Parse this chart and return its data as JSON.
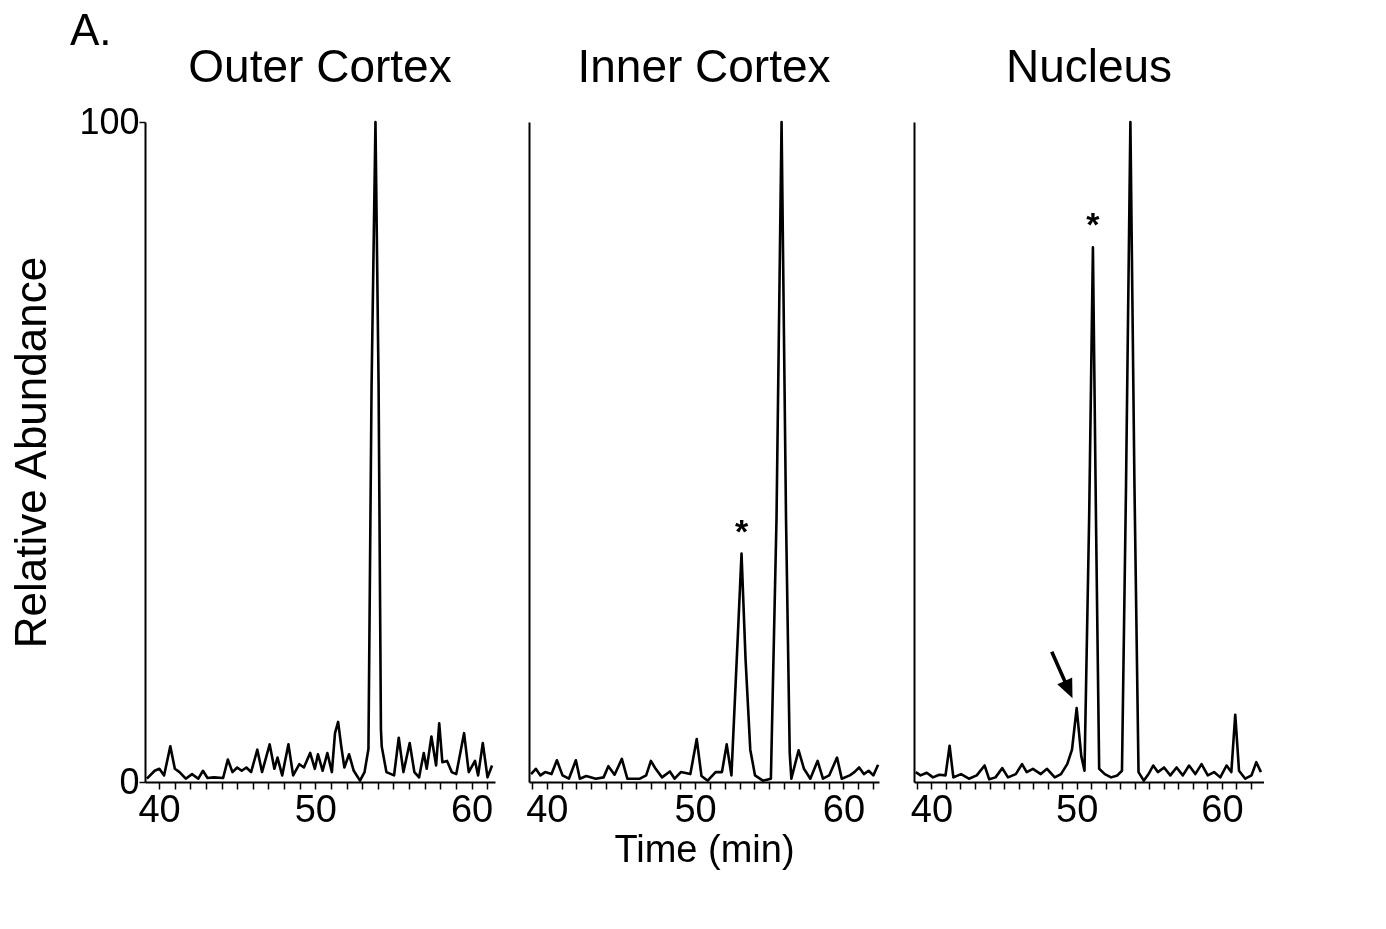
{
  "chart_data": [
    {
      "type": "line",
      "title": "Outer Cortex",
      "ylabel": "Relative Abundance",
      "annotations": [
        "A."
      ],
      "line_style": "solid",
      "grid": false,
      "xlim": [
        39.1,
        61.5
      ],
      "ylim": [
        0,
        100
      ],
      "yticks": [
        0,
        100
      ],
      "xticks": [
        40,
        {
          "value": 41,
          "label": null
        },
        {
          "value": 42,
          "label": null
        },
        {
          "value": 43,
          "label": null
        },
        {
          "value": 44,
          "label": null
        },
        {
          "value": 45,
          "label": null
        },
        {
          "value": 46,
          "label": null
        },
        {
          "value": 47,
          "label": null
        },
        {
          "value": 48,
          "label": null
        },
        {
          "value": 49,
          "label": null
        },
        50,
        {
          "value": 51,
          "label": null
        },
        {
          "value": 52,
          "label": null
        },
        {
          "value": 53,
          "label": null
        },
        {
          "value": 54,
          "label": null
        },
        {
          "value": 55,
          "label": null
        },
        {
          "value": 56,
          "label": null
        },
        {
          "value": 57,
          "label": null
        },
        {
          "value": 58,
          "label": null
        },
        {
          "value": 59,
          "label": null
        },
        60,
        {
          "value": 61,
          "label": null
        }
      ],
      "series": [
        {
          "color": "#000000",
          "x": [
            39.22,
            39.72,
            40.02,
            40.32,
            40.72,
            41.01,
            41.31,
            41.71,
            42.11,
            42.51,
            42.81,
            43.1,
            43.5,
            44.1,
            44.4,
            44.7,
            45.0,
            45.29,
            45.59,
            45.89,
            46.29,
            46.59,
            47.08,
            47.38,
            47.58,
            47.88,
            48.28,
            48.58,
            48.98,
            49.27,
            49.67,
            49.97,
            50.17,
            50.47,
            50.77,
            51.06,
            51.26,
            51.46,
            51.66,
            51.86,
            52.16,
            52.46,
            52.86,
            53.15,
            53.4,
            53.6,
            53.85,
            54.05,
            54.2,
            54.25,
            54.55,
            55.04,
            55.34,
            55.64,
            56.04,
            56.34,
            56.64,
            56.94,
            57.13,
            57.43,
            57.73,
            57.93,
            58.13,
            58.43,
            58.73,
            59.02,
            59.52,
            59.82,
            60.22,
            60.42,
            60.72,
            61.02,
            61.31
          ],
          "values": [
            0.5,
            1.7,
            2.0,
            1.0,
            5.4,
            2.0,
            1.5,
            0.5,
            1.2,
            0.5,
            1.7,
            0.6,
            0.7,
            0.6,
            3.4,
            1.5,
            2.2,
            1.7,
            2.2,
            1.5,
            4.9,
            1.5,
            5.7,
            2.0,
            3.7,
            1.0,
            5.7,
            1.0,
            2.7,
            2.2,
            4.4,
            2.0,
            4.2,
            1.7,
            4.4,
            1.5,
            7.4,
            9.1,
            5.4,
            2.2,
            4.2,
            1.7,
            0.2,
            1.5,
            5,
            60,
            100,
            60,
            8,
            5.4,
            1.5,
            1.0,
            6.7,
            1.5,
            5.9,
            1.5,
            0.7,
            4.4,
            2.0,
            6.9,
            2.5,
            8.9,
            3.0,
            3.2,
            1.5,
            1.2,
            7.4,
            1.5,
            3.2,
            1.0,
            5.9,
            0.7,
            2.5
          ]
        }
      ]
    },
    {
      "type": "line",
      "title": "Inner Cortex",
      "xlabel": "Time (min)",
      "annotations": [
        {
          "text": "*",
          "x": 53.13,
          "y": 34.6
        }
      ],
      "line_style": "solid",
      "grid": false,
      "tick_labels": "x",
      "xlim": [
        38.8,
        62.4
      ],
      "ylim": [
        0,
        100
      ],
      "xticks": [
        {
          "value": 39,
          "label": null
        },
        40,
        {
          "value": 41,
          "label": null
        },
        {
          "value": 42,
          "label": null
        },
        {
          "value": 43,
          "label": null
        },
        {
          "value": 44,
          "label": null
        },
        {
          "value": 45,
          "label": null
        },
        {
          "value": 46,
          "label": null
        },
        {
          "value": 47,
          "label": null
        },
        {
          "value": 48,
          "label": null
        },
        {
          "value": 49,
          "label": null
        },
        50,
        {
          "value": 51,
          "label": null
        },
        {
          "value": 52,
          "label": null
        },
        {
          "value": 53,
          "label": null
        },
        {
          "value": 54,
          "label": null
        },
        {
          "value": 55,
          "label": null
        },
        {
          "value": 56,
          "label": null
        },
        {
          "value": 57,
          "label": null
        },
        {
          "value": 58,
          "label": null
        },
        {
          "value": 59,
          "label": null
        },
        60,
        {
          "value": 61,
          "label": null
        },
        {
          "value": 62,
          "label": null
        }
      ],
      "series": [
        {
          "color": "#000000",
          "x": [
            38.94,
            39.26,
            39.57,
            39.89,
            40.32,
            40.68,
            41.06,
            41.49,
            41.96,
            42.23,
            42.66,
            43.3,
            43.83,
            44.15,
            44.57,
            45.06,
            45.43,
            46.28,
            46.7,
            47.02,
            47.34,
            47.77,
            48.3,
            48.62,
            49.04,
            49.68,
            50.11,
            50.43,
            50.85,
            51.38,
            51.81,
            52.13,
            52.45,
            52.91,
            53.13,
            53.4,
            53.72,
            54.04,
            54.57,
            55.11,
            55.49,
            55.83,
            56.13,
            56.38,
            56.49,
            56.98,
            57.34,
            57.77,
            58.26,
            58.62,
            59.04,
            59.57,
            59.89,
            60.43,
            60.74,
            61.06,
            61.38,
            61.7,
            62.02,
            62.34
          ],
          "values": [
            1.2,
            2.0,
            1.0,
            1.5,
            1.2,
            3.3,
            1.0,
            0.5,
            3.3,
            0.5,
            0.9,
            0.5,
            0.7,
            2.4,
            1.1,
            3.5,
            0.5,
            0.5,
            1.0,
            3.2,
            2.0,
            0.7,
            1.6,
            0.5,
            1.5,
            1.2,
            6.5,
            0.9,
            0.2,
            1.5,
            1.5,
            5.7,
            1.0,
            23.6,
            34.6,
            18.7,
            4.9,
            1.0,
            0.2,
            0.5,
            40,
            100,
            40,
            4.4,
            0.5,
            4.8,
            2.0,
            0.5,
            3.2,
            0.5,
            1.0,
            3.7,
            0.5,
            1.0,
            1.5,
            2.2,
            1.2,
            1.7,
            1.0,
            2.6
          ]
        }
      ]
    },
    {
      "type": "line",
      "title": "Nucleus",
      "annotations": [
        {
          "text": "*",
          "x": 51.12,
          "y": 81
        }
      ],
      "line_style": "solid",
      "grid": false,
      "tick_labels": "x",
      "xlim": [
        38.8,
        62.9
      ],
      "ylim": [
        0,
        100
      ],
      "xticks": [
        {
          "value": 39,
          "label": null
        },
        40,
        {
          "value": 41,
          "label": null
        },
        {
          "value": 42,
          "label": null
        },
        {
          "value": 43,
          "label": null
        },
        {
          "value": 44,
          "label": null
        },
        {
          "value": 45,
          "label": null
        },
        {
          "value": 46,
          "label": null
        },
        {
          "value": 47,
          "label": null
        },
        {
          "value": 48,
          "label": null
        },
        {
          "value": 49,
          "label": null
        },
        50,
        {
          "value": 51,
          "label": null
        },
        {
          "value": 52,
          "label": null
        },
        {
          "value": 53,
          "label": null
        },
        {
          "value": 54,
          "label": null
        },
        {
          "value": 55,
          "label": null
        },
        {
          "value": 56,
          "label": null
        },
        {
          "value": 57,
          "label": null
        },
        {
          "value": 58,
          "label": null
        },
        {
          "value": 59,
          "label": null
        },
        60,
        {
          "value": 61,
          "label": null
        },
        {
          "value": 62,
          "label": null
        }
      ],
      "series": [
        {
          "color": "#000000",
          "x": [
            38.92,
            39.25,
            39.68,
            40.11,
            40.54,
            40.97,
            41.25,
            41.51,
            42.04,
            42.58,
            43.12,
            43.66,
            43.98,
            44.41,
            44.88,
            45.27,
            45.81,
            46.24,
            46.56,
            46.99,
            47.53,
            47.96,
            48.49,
            48.92,
            49.35,
            49.68,
            50.0,
            50.32,
            50.54,
            50.86,
            51.12,
            51.33,
            51.55,
            51.94,
            52.37,
            52.8,
            53.12,
            53.4,
            53.7,
            53.98,
            54.26,
            54.62,
            54.95,
            55.27,
            55.59,
            56.02,
            56.45,
            56.88,
            57.31,
            57.74,
            58.17,
            58.6,
            59.03,
            59.46,
            59.89,
            60.32,
            60.65,
            60.92,
            61.18,
            61.61,
            62.04,
            62.37,
            62.69
          ],
          "values": [
            1.5,
            1.0,
            1.4,
            0.7,
            1.1,
            1.0,
            5.5,
            0.7,
            1.2,
            0.5,
            1.0,
            2.5,
            0.4,
            0.7,
            2.1,
            0.7,
            1.2,
            2.7,
            1.5,
            2.0,
            1.2,
            2.0,
            0.7,
            1.2,
            2.7,
            4.9,
            11.2,
            3.9,
            1.7,
            40,
            81,
            40,
            2.0,
            1.2,
            0.7,
            1.0,
            1.7,
            45,
            100,
            45,
            1.5,
            0.2,
            1.2,
            2.5,
            1.5,
            2.2,
            1.0,
            2.2,
            1.0,
            2.5,
            1.2,
            2.7,
            1.0,
            1.5,
            0.7,
            2.5,
            1.5,
            10.2,
            1.7,
            0.5,
            1.0,
            3.0,
            1.5
          ]
        }
      ]
    }
  ]
}
